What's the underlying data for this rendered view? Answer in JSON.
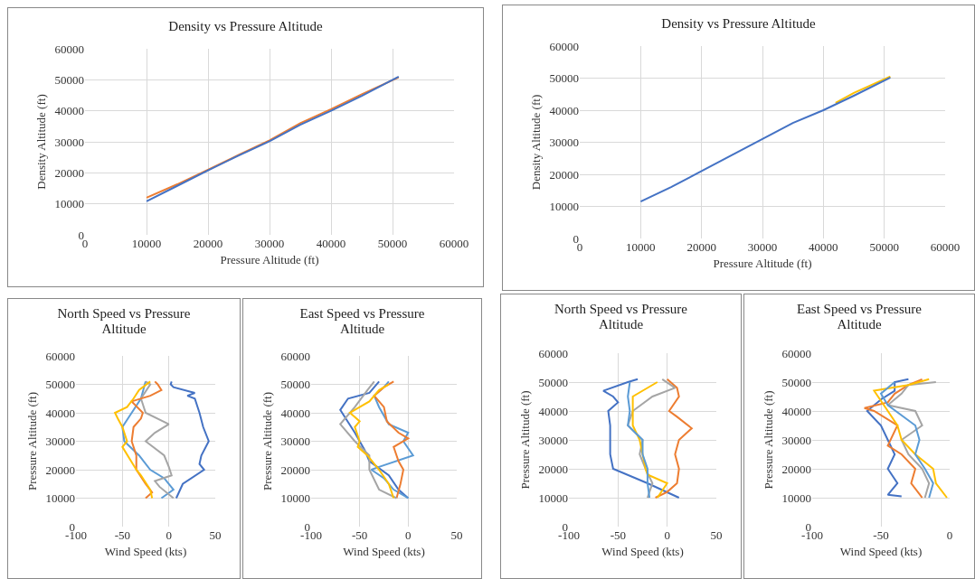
{
  "chart_data": [
    {
      "type": "line",
      "title": "Density  vs Pressure Altitude",
      "xlabel": "Pressure Altitude (ft)",
      "ylabel": "Density Altitude (ft)",
      "xlim": [
        0,
        60000
      ],
      "xticks": [
        0,
        10000,
        20000,
        30000,
        40000,
        50000,
        60000
      ],
      "ylim": [
        0,
        60000
      ],
      "yticks": [
        0,
        10000,
        20000,
        30000,
        40000,
        50000,
        60000
      ],
      "grid": true,
      "series": [
        {
          "color": "#ed7d31",
          "x": [
            10000,
            15000,
            20000,
            25000,
            30000,
            35000,
            40000,
            45000,
            51000
          ],
          "values": [
            12000,
            16300,
            21000,
            25800,
            30500,
            36000,
            40500,
            45300,
            50800
          ]
        },
        {
          "color": "#4472c4",
          "x": [
            10000,
            15000,
            20000,
            25000,
            30000,
            35000,
            40000,
            45000,
            51000
          ],
          "values": [
            10800,
            15800,
            20800,
            25600,
            30200,
            35500,
            40000,
            44800,
            51000
          ]
        }
      ]
    },
    {
      "type": "line",
      "title": "Density  vs Pressure Altitude",
      "xlabel": "Pressure Altitude (ft)",
      "ylabel": "Density Altitude (ft)",
      "xlim": [
        0,
        60000
      ],
      "xticks": [
        0,
        10000,
        20000,
        30000,
        40000,
        50000,
        60000
      ],
      "ylim": [
        0,
        60000
      ],
      "yticks": [
        0,
        10000,
        20000,
        30000,
        40000,
        50000,
        60000
      ],
      "grid": true,
      "series": [
        {
          "color": "#ffc000",
          "x": [
            42000,
            45000,
            51000
          ],
          "values": [
            42300,
            45400,
            50500
          ]
        },
        {
          "color": "#4472c4",
          "x": [
            10000,
            15000,
            20000,
            25000,
            30000,
            35000,
            40000,
            45000,
            51000
          ],
          "values": [
            11500,
            16000,
            21000,
            26000,
            31000,
            36000,
            40000,
            44500,
            50200
          ]
        }
      ]
    },
    {
      "type": "line",
      "title": "North Speed vs Pressure Altitude",
      "xlabel": "Wind Speed (kts)",
      "ylabel": "Pressure Altitude (ft)",
      "xlim": [
        -100,
        50
      ],
      "xticks": [
        -100,
        -50,
        0,
        50
      ],
      "ylim": [
        0,
        60000
      ],
      "yticks": [
        0,
        10000,
        20000,
        30000,
        40000,
        50000,
        60000
      ],
      "grid": true,
      "series": [
        {
          "color": "#4472c4",
          "x": [
            8,
            15,
            38,
            33,
            35,
            43,
            37,
            33,
            28,
            20,
            28,
            5,
            2,
            3
          ],
          "values": [
            10000,
            15000,
            20000,
            22000,
            25000,
            30000,
            35000,
            40000,
            45000,
            46000,
            47000,
            49000,
            50000,
            51000
          ]
        },
        {
          "color": "#5b9bd5",
          "x": [
            -8,
            5,
            -5,
            -20,
            -32,
            -48,
            -50,
            -40,
            -30,
            -25
          ],
          "values": [
            10000,
            13000,
            17000,
            20000,
            25000,
            30000,
            35000,
            40000,
            45000,
            51000
          ]
        },
        {
          "color": "#a5a5a5",
          "x": [
            5,
            -10,
            -15,
            3,
            0,
            -5,
            -25,
            -15,
            0,
            -25,
            -30,
            -20,
            -25
          ],
          "values": [
            10000,
            14000,
            16000,
            18000,
            21000,
            25000,
            30000,
            33000,
            36000,
            40000,
            45000,
            50000,
            51000
          ]
        },
        {
          "color": "#ed7d31",
          "x": [
            -25,
            -18,
            -25,
            -35,
            -35,
            -40,
            -38,
            -30,
            -28,
            -40,
            -20,
            -8,
            -12,
            -15
          ],
          "values": [
            10000,
            12000,
            15000,
            20000,
            25000,
            30000,
            35000,
            38000,
            40000,
            44000,
            46000,
            48000,
            50000,
            51000
          ]
        },
        {
          "color": "#ffc000",
          "x": [
            -18,
            -20,
            -30,
            -35,
            -50,
            -45,
            -50,
            -55,
            -58,
            -45,
            -38,
            -32,
            -20
          ],
          "values": [
            10000,
            13000,
            18000,
            20000,
            28000,
            30000,
            35000,
            38000,
            40000,
            42000,
            45000,
            48000,
            51000
          ]
        }
      ]
    },
    {
      "type": "line",
      "title": "East Speed vs Pressure Altitude",
      "xlabel": "Wind Speed (kts)",
      "ylabel": "Pressure Altitude (ft)",
      "xlim": [
        -100,
        50
      ],
      "xticks": [
        -100,
        -50,
        0,
        50
      ],
      "ylim": [
        0,
        60000
      ],
      "yticks": [
        0,
        10000,
        20000,
        30000,
        40000,
        50000,
        60000
      ],
      "grid": true,
      "series": [
        {
          "color": "#4472c4",
          "x": [
            0,
            -10,
            -20,
            -40,
            -45,
            -55,
            -70,
            -62,
            -40,
            -35,
            -30
          ],
          "values": [
            10000,
            13000,
            18000,
            23000,
            27000,
            33000,
            41000,
            45000,
            47000,
            49000,
            51000
          ]
        },
        {
          "color": "#5b9bd5",
          "x": [
            0,
            -15,
            -25,
            -38,
            -30,
            5,
            -5,
            0,
            -20,
            -30,
            -35,
            -25,
            -20
          ],
          "values": [
            10000,
            13000,
            17000,
            20000,
            21000,
            25000,
            30000,
            33000,
            36000,
            42000,
            46000,
            49000,
            51000
          ]
        },
        {
          "color": "#ed7d31",
          "x": [
            -12,
            -8,
            -5,
            -10,
            -15,
            0,
            -10,
            -22,
            -25,
            -35,
            -25,
            -15
          ],
          "values": [
            10000,
            15000,
            20000,
            23000,
            28000,
            31000,
            33000,
            37000,
            42000,
            46000,
            49000,
            51000
          ]
        },
        {
          "color": "#a5a5a5",
          "x": [
            -12,
            -30,
            -40,
            -40,
            -55,
            -70,
            -55,
            -42,
            -35
          ],
          "values": [
            10000,
            13000,
            20000,
            25000,
            30000,
            36000,
            42000,
            48000,
            51000
          ]
        },
        {
          "color": "#ffc000",
          "x": [
            -15,
            -20,
            -30,
            -42,
            -52,
            -50,
            -55,
            -50,
            -60,
            -40,
            -30,
            -20
          ],
          "values": [
            10000,
            15000,
            20000,
            25000,
            28000,
            30000,
            35000,
            37000,
            40000,
            44000,
            48000,
            50000
          ]
        }
      ]
    },
    {
      "type": "line",
      "title": "North Speed vs Pressure Altitude",
      "xlabel": "Wind Speed (kts)",
      "ylabel": "Pressure Altitude (ft)",
      "xlim": [
        -100,
        50
      ],
      "xticks": [
        -100,
        -50,
        0,
        50
      ],
      "ylim": [
        0,
        60000
      ],
      "yticks": [
        0,
        10000,
        20000,
        30000,
        40000,
        50000,
        60000
      ],
      "grid": true,
      "series": [
        {
          "color": "#4472c4",
          "x": [
            12,
            -20,
            -55,
            -58,
            -58,
            -58,
            -60,
            -50,
            -55,
            -65,
            -40,
            -30
          ],
          "values": [
            10000,
            15000,
            20000,
            25000,
            30000,
            35000,
            40000,
            43000,
            45000,
            47000,
            50000,
            51000
          ]
        },
        {
          "color": "#ed7d31",
          "x": [
            -12,
            0,
            10,
            12,
            8,
            12,
            25,
            10,
            2,
            12,
            10,
            0
          ],
          "values": [
            10000,
            12000,
            15000,
            20000,
            25000,
            30000,
            34000,
            38000,
            40000,
            45000,
            48000,
            51000
          ]
        },
        {
          "color": "#a5a5a5",
          "x": [
            -20,
            -15,
            -22,
            -28,
            -25,
            -40,
            -35,
            -15,
            8,
            -5
          ],
          "values": [
            10000,
            15000,
            20000,
            25000,
            30000,
            35000,
            40000,
            45000,
            48000,
            51000
          ]
        },
        {
          "color": "#ffc000",
          "x": [
            -10,
            0,
            -20,
            -22,
            -25,
            -28,
            -35,
            -35,
            -35,
            -10
          ],
          "values": [
            10000,
            15000,
            18000,
            20000,
            25000,
            30000,
            35000,
            40000,
            45000,
            50000
          ]
        },
        {
          "color": "#5b9bd5",
          "x": [
            -18,
            -20,
            -20,
            -25,
            -25,
            -40,
            -38,
            -40,
            -38
          ],
          "values": [
            10000,
            15000,
            20000,
            25000,
            30000,
            35000,
            40000,
            45000,
            50000
          ]
        }
      ]
    },
    {
      "type": "line",
      "title": "East  Speed vs Pressure Altitude",
      "xlabel": "Wind Speed (kts)",
      "ylabel": "Pressure Altitude (ft)",
      "xlim": [
        -100,
        0
      ],
      "xticks": [
        -100,
        -50,
        0
      ],
      "ylim": [
        0,
        60000
      ],
      "yticks": [
        0,
        10000,
        20000,
        30000,
        40000,
        50000,
        60000
      ],
      "grid": true,
      "series": [
        {
          "color": "#4472c4",
          "x": [
            -35,
            -45,
            -38,
            -45,
            -40,
            -45,
            -50,
            -60,
            -50,
            -40,
            -40,
            -30
          ],
          "values": [
            10500,
            11000,
            15000,
            20000,
            25000,
            30000,
            35000,
            40000,
            44000,
            47000,
            50000,
            51000
          ]
        },
        {
          "color": "#ed7d31",
          "x": [
            -20,
            -28,
            -25,
            -35,
            -45,
            -38,
            -55,
            -62,
            -45,
            -40,
            -30,
            -20
          ],
          "values": [
            10000,
            15000,
            20000,
            25000,
            28000,
            35000,
            40000,
            41000,
            43000,
            46000,
            49000,
            51000
          ]
        },
        {
          "color": "#a5a5a5",
          "x": [
            -18,
            -15,
            -20,
            -30,
            -35,
            -20,
            -25,
            -45,
            -35,
            -30,
            -10
          ],
          "values": [
            10000,
            15000,
            20000,
            25000,
            30000,
            35000,
            40000,
            42000,
            46000,
            49000,
            50000
          ]
        },
        {
          "color": "#ffc000",
          "x": [
            -2,
            -10,
            -12,
            -25,
            -35,
            -38,
            -45,
            -55,
            -30,
            -15
          ],
          "values": [
            10000,
            15000,
            20000,
            25000,
            30000,
            35000,
            40000,
            47000,
            49000,
            51000
          ]
        },
        {
          "color": "#5b9bd5",
          "x": [
            -15,
            -12,
            -18,
            -25,
            -22,
            -25,
            -45,
            -50,
            -40
          ],
          "values": [
            10000,
            15000,
            20000,
            25000,
            30000,
            35000,
            42000,
            46000,
            50000
          ]
        }
      ]
    }
  ]
}
